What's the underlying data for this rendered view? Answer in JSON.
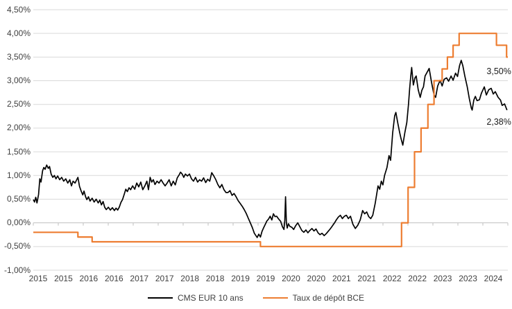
{
  "page": {
    "background": "#ffffff"
  },
  "chart_data": {
    "type": "line",
    "title": "",
    "xlabel": "",
    "ylabel": "",
    "grid": true,
    "legend_position": "bottom",
    "x_axis": {
      "unit": "months since Jan 2015",
      "range": [
        0,
        117
      ],
      "tick_labels": [
        "2015",
        "2015",
        "2016",
        "2016",
        "2017",
        "2017",
        "2018",
        "2018",
        "2019",
        "2019",
        "2020",
        "2020",
        "2021",
        "2021",
        "2022",
        "2022",
        "2023",
        "2023",
        "2024"
      ]
    },
    "y_axis": {
      "range": [
        -1.0,
        4.5
      ],
      "ticks": [
        4.5,
        4.0,
        3.5,
        3.0,
        2.5,
        2.0,
        1.5,
        1.0,
        0.5,
        0.0,
        -0.5,
        -1.0
      ],
      "tick_labels": [
        "4,50%",
        "4,00%",
        "3,50%",
        "3,00%",
        "2,50%",
        "2,00%",
        "1,50%",
        "1,00%",
        "0,50%",
        "0,00%",
        "-0,50%",
        "-1,00%"
      ]
    },
    "colors": {
      "cms": "#000000",
      "bce": "#ED7D31",
      "gridline": "#d9d9d9",
      "zero_axis": "#bfbfbf",
      "label_text": "#404040"
    },
    "series": [
      {
        "name": "CMS EUR 10 ans",
        "color": "#000000",
        "stroke_width": 1.7,
        "points": [
          [
            0,
            0.49
          ],
          [
            0.3,
            0.44
          ],
          [
            0.6,
            0.54
          ],
          [
            0.9,
            0.42
          ],
          [
            1.3,
            0.6
          ],
          [
            1.6,
            0.93
          ],
          [
            1.9,
            0.86
          ],
          [
            2.3,
            1.1
          ],
          [
            2.6,
            1.17
          ],
          [
            2.9,
            1.13
          ],
          [
            3.3,
            1.22
          ],
          [
            3.7,
            1.15
          ],
          [
            4,
            1.19
          ],
          [
            4.4,
            1.03
          ],
          [
            4.8,
            0.96
          ],
          [
            5.2,
            1.0
          ],
          [
            5.6,
            0.93
          ],
          [
            6,
            0.99
          ],
          [
            6.5,
            0.91
          ],
          [
            7,
            0.96
          ],
          [
            7.5,
            0.88
          ],
          [
            8,
            0.93
          ],
          [
            8.5,
            0.84
          ],
          [
            9,
            0.91
          ],
          [
            9.4,
            0.78
          ],
          [
            9.8,
            0.88
          ],
          [
            10.3,
            0.84
          ],
          [
            10.7,
            0.91
          ],
          [
            11,
            0.96
          ],
          [
            11.4,
            0.77
          ],
          [
            11.8,
            0.67
          ],
          [
            12.2,
            0.59
          ],
          [
            12.5,
            0.67
          ],
          [
            12.9,
            0.55
          ],
          [
            13.2,
            0.49
          ],
          [
            13.6,
            0.55
          ],
          [
            14,
            0.46
          ],
          [
            14.5,
            0.52
          ],
          [
            15,
            0.44
          ],
          [
            15.5,
            0.5
          ],
          [
            16,
            0.42
          ],
          [
            16.4,
            0.48
          ],
          [
            16.8,
            0.38
          ],
          [
            17.2,
            0.45
          ],
          [
            17.6,
            0.33
          ],
          [
            18,
            0.28
          ],
          [
            18.5,
            0.33
          ],
          [
            19,
            0.27
          ],
          [
            19.5,
            0.32
          ],
          [
            20,
            0.26
          ],
          [
            20.4,
            0.31
          ],
          [
            20.8,
            0.27
          ],
          [
            21.2,
            0.33
          ],
          [
            21.6,
            0.43
          ],
          [
            22,
            0.49
          ],
          [
            22.4,
            0.6
          ],
          [
            22.8,
            0.71
          ],
          [
            23.2,
            0.66
          ],
          [
            23.6,
            0.74
          ],
          [
            24,
            0.7
          ],
          [
            24.5,
            0.78
          ],
          [
            25,
            0.71
          ],
          [
            25.5,
            0.84
          ],
          [
            26,
            0.76
          ],
          [
            26.5,
            0.86
          ],
          [
            27,
            0.7
          ],
          [
            27.5,
            0.78
          ],
          [
            28,
            0.88
          ],
          [
            28.4,
            0.7
          ],
          [
            28.8,
            0.96
          ],
          [
            29.2,
            0.86
          ],
          [
            29.6,
            0.91
          ],
          [
            30,
            0.81
          ],
          [
            30.5,
            0.88
          ],
          [
            31,
            0.84
          ],
          [
            31.5,
            0.91
          ],
          [
            32,
            0.84
          ],
          [
            32.5,
            0.78
          ],
          [
            33,
            0.84
          ],
          [
            33.5,
            0.91
          ],
          [
            34,
            0.78
          ],
          [
            34.5,
            0.88
          ],
          [
            35,
            0.8
          ],
          [
            35.5,
            0.95
          ],
          [
            36,
            1.02
          ],
          [
            36.3,
            1.07
          ],
          [
            36.7,
            1.03
          ],
          [
            37.1,
            0.96
          ],
          [
            37.5,
            1.03
          ],
          [
            38,
            0.99
          ],
          [
            38.5,
            1.03
          ],
          [
            39,
            0.93
          ],
          [
            39.5,
            0.88
          ],
          [
            40,
            0.96
          ],
          [
            40.5,
            0.86
          ],
          [
            41,
            0.91
          ],
          [
            41.5,
            0.88
          ],
          [
            42,
            0.95
          ],
          [
            42.5,
            0.85
          ],
          [
            43,
            0.92
          ],
          [
            43.5,
            0.88
          ],
          [
            44,
            1.06
          ],
          [
            44.5,
            0.99
          ],
          [
            45,
            0.91
          ],
          [
            45.5,
            0.81
          ],
          [
            46,
            0.74
          ],
          [
            46.5,
            0.81
          ],
          [
            47,
            0.7
          ],
          [
            47.5,
            0.64
          ],
          [
            48,
            0.64
          ],
          [
            48.5,
            0.68
          ],
          [
            49,
            0.58
          ],
          [
            49.5,
            0.62
          ],
          [
            50,
            0.55
          ],
          [
            50.5,
            0.47
          ],
          [
            51,
            0.41
          ],
          [
            51.5,
            0.35
          ],
          [
            52,
            0.28
          ],
          [
            52.5,
            0.2
          ],
          [
            53,
            0.1
          ],
          [
            53.5,
            0.0
          ],
          [
            54,
            -0.1
          ],
          [
            54.5,
            -0.22
          ],
          [
            55.2,
            -0.31
          ],
          [
            55.6,
            -0.24
          ],
          [
            56,
            -0.3
          ],
          [
            56.4,
            -0.18
          ],
          [
            56.8,
            -0.1
          ],
          [
            57.2,
            -0.03
          ],
          [
            57.6,
            0.04
          ],
          [
            58,
            0.08
          ],
          [
            58.4,
            0.14
          ],
          [
            58.8,
            0.06
          ],
          [
            59.2,
            0.19
          ],
          [
            59.6,
            0.13
          ],
          [
            60,
            0.14
          ],
          [
            60.5,
            0.08
          ],
          [
            61,
            0.03
          ],
          [
            61.4,
            -0.08
          ],
          [
            61.8,
            -0.14
          ],
          [
            62,
            0.05
          ],
          [
            62.2,
            0.55
          ],
          [
            62.4,
            0.0
          ],
          [
            62.6,
            -0.11
          ],
          [
            62.9,
            -0.02
          ],
          [
            63.3,
            -0.08
          ],
          [
            63.7,
            -0.09
          ],
          [
            64.2,
            -0.14
          ],
          [
            64.7,
            -0.06
          ],
          [
            65.2,
            0.0
          ],
          [
            65.7,
            -0.08
          ],
          [
            66.2,
            -0.16
          ],
          [
            66.7,
            -0.2
          ],
          [
            67.2,
            -0.15
          ],
          [
            67.7,
            -0.21
          ],
          [
            68.2,
            -0.16
          ],
          [
            68.7,
            -0.12
          ],
          [
            69.2,
            -0.17
          ],
          [
            69.7,
            -0.13
          ],
          [
            70.2,
            -0.21
          ],
          [
            70.7,
            -0.25
          ],
          [
            71.2,
            -0.22
          ],
          [
            71.7,
            -0.27
          ],
          [
            72.2,
            -0.23
          ],
          [
            72.7,
            -0.18
          ],
          [
            73.2,
            -0.13
          ],
          [
            73.7,
            -0.07
          ],
          [
            74.2,
            -0.01
          ],
          [
            74.7,
            0.06
          ],
          [
            75.2,
            0.12
          ],
          [
            75.7,
            0.16
          ],
          [
            76.2,
            0.09
          ],
          [
            76.7,
            0.14
          ],
          [
            77.2,
            0.16
          ],
          [
            77.7,
            0.09
          ],
          [
            78.2,
            0.14
          ],
          [
            78.8,
            -0.03
          ],
          [
            79.4,
            -0.12
          ],
          [
            80,
            -0.05
          ],
          [
            80.6,
            0.06
          ],
          [
            81.2,
            0.26
          ],
          [
            81.7,
            0.19
          ],
          [
            82.2,
            0.23
          ],
          [
            82.7,
            0.13
          ],
          [
            83.2,
            0.09
          ],
          [
            83.7,
            0.16
          ],
          [
            84.3,
            0.41
          ],
          [
            85,
            0.78
          ],
          [
            85.4,
            0.71
          ],
          [
            85.8,
            0.88
          ],
          [
            86.2,
            0.8
          ],
          [
            86.6,
            1.0
          ],
          [
            87.2,
            1.17
          ],
          [
            87.7,
            1.42
          ],
          [
            88.1,
            1.32
          ],
          [
            88.6,
            1.9
          ],
          [
            89.1,
            2.26
          ],
          [
            89.4,
            2.33
          ],
          [
            89.9,
            2.09
          ],
          [
            90.3,
            1.92
          ],
          [
            90.6,
            1.8
          ],
          [
            91.1,
            1.64
          ],
          [
            91.6,
            1.9
          ],
          [
            92.1,
            2.12
          ],
          [
            92.5,
            2.5
          ],
          [
            92.8,
            2.84
          ],
          [
            93.1,
            3.13
          ],
          [
            93.3,
            3.28
          ],
          [
            93.7,
            2.91
          ],
          [
            94.1,
            3.06
          ],
          [
            94.4,
            3.1
          ],
          [
            94.9,
            2.81
          ],
          [
            95.4,
            2.65
          ],
          [
            95.8,
            2.8
          ],
          [
            96.2,
            2.87
          ],
          [
            96.6,
            3.1
          ],
          [
            97.1,
            3.18
          ],
          [
            97.6,
            3.26
          ],
          [
            98.2,
            2.96
          ],
          [
            98.8,
            2.7
          ],
          [
            99.2,
            2.65
          ],
          [
            99.7,
            2.89
          ],
          [
            100.3,
            3.01
          ],
          [
            100.8,
            2.89
          ],
          [
            101.3,
            3.03
          ],
          [
            101.9,
            3.06
          ],
          [
            102.4,
            2.99
          ],
          [
            103,
            3.1
          ],
          [
            103.5,
            3.01
          ],
          [
            104.1,
            3.16
          ],
          [
            104.6,
            3.09
          ],
          [
            105.1,
            3.32
          ],
          [
            105.5,
            3.43
          ],
          [
            105.9,
            3.32
          ],
          [
            106.4,
            3.1
          ],
          [
            107,
            2.87
          ],
          [
            107.5,
            2.62
          ],
          [
            108,
            2.42
          ],
          [
            108.2,
            2.38
          ],
          [
            108.6,
            2.59
          ],
          [
            109,
            2.67
          ],
          [
            109.4,
            2.58
          ],
          [
            110,
            2.6
          ],
          [
            110.5,
            2.74
          ],
          [
            111.2,
            2.87
          ],
          [
            111.7,
            2.7
          ],
          [
            112.3,
            2.81
          ],
          [
            112.9,
            2.84
          ],
          [
            113.4,
            2.72
          ],
          [
            113.9,
            2.77
          ],
          [
            114.6,
            2.65
          ],
          [
            115.2,
            2.59
          ],
          [
            115.6,
            2.48
          ],
          [
            116.2,
            2.51
          ],
          [
            116.8,
            2.38
          ]
        ]
      },
      {
        "name": "Taux de dépôt BCE",
        "color": "#ED7D31",
        "stroke_width": 2.2,
        "points": [
          [
            0,
            -0.2
          ],
          [
            11,
            -0.2
          ],
          [
            11,
            -0.3
          ],
          [
            14.5,
            -0.3
          ],
          [
            14.5,
            -0.4
          ],
          [
            56,
            -0.4
          ],
          [
            56,
            -0.5
          ],
          [
            90.8,
            -0.5
          ],
          [
            90.8,
            0.0
          ],
          [
            92.4,
            0.0
          ],
          [
            92.4,
            0.75
          ],
          [
            94,
            0.75
          ],
          [
            94,
            1.5
          ],
          [
            95.6,
            1.5
          ],
          [
            95.6,
            2.0
          ],
          [
            97.3,
            2.0
          ],
          [
            97.3,
            2.5
          ],
          [
            98.8,
            2.5
          ],
          [
            98.8,
            3.0
          ],
          [
            100.8,
            3.0
          ],
          [
            100.8,
            3.25
          ],
          [
            102.1,
            3.25
          ],
          [
            102.1,
            3.5
          ],
          [
            103.5,
            3.5
          ],
          [
            103.5,
            3.75
          ],
          [
            105,
            3.75
          ],
          [
            105,
            4.0
          ],
          [
            114.2,
            4.0
          ],
          [
            114.2,
            3.75
          ],
          [
            116.7,
            3.75
          ],
          [
            116.7,
            3.5
          ],
          [
            117,
            3.5
          ]
        ]
      }
    ],
    "annotations": [
      {
        "text": "3,50%",
        "series": "Taux de dépôt BCE",
        "x": 114.8,
        "y": 3.18
      },
      {
        "text": "2,38%",
        "series": "CMS EUR 10 ans",
        "x": 114.8,
        "y": 2.11
      }
    ]
  }
}
